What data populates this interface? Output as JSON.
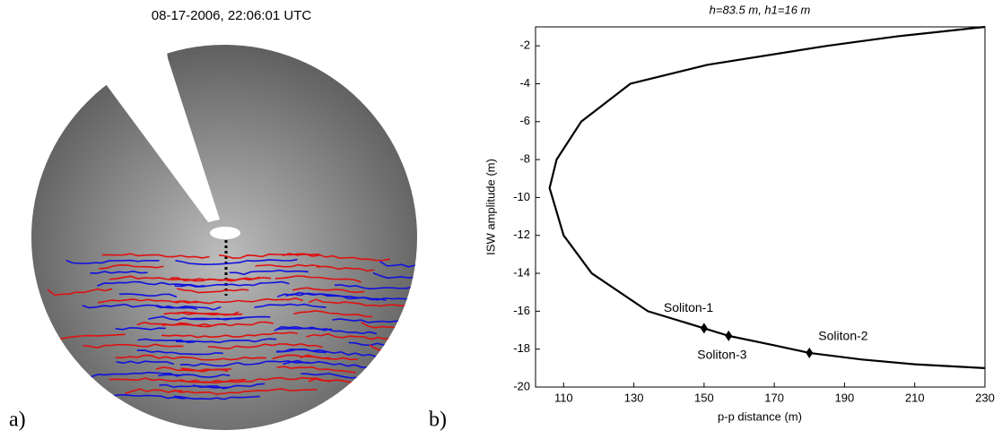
{
  "chart_data": [
    {
      "type": "image",
      "title": "08-17-2006, 22:06:01 UTC",
      "panel_label": "a)"
    },
    {
      "type": "line",
      "title": "h=83.5 m, h1=16 m",
      "panel_label": "b)",
      "xlabel": "p-p distance (m)",
      "ylabel": "ISW amplitude (m)",
      "xlim": [
        102,
        230
      ],
      "xticks": [
        110,
        130,
        150,
        170,
        190,
        210,
        230
      ],
      "ylim": [
        -20,
        -1
      ],
      "yticks": [
        -20,
        -18,
        -16,
        -14,
        -12,
        -10,
        -8,
        -6,
        -4,
        -2
      ],
      "series": [
        {
          "color": "#000000",
          "x": [
            230,
            205,
            185,
            151,
            129,
            115,
            108,
            106,
            110,
            118,
            134,
            150,
            157,
            170,
            180,
            195,
            210,
            230
          ],
          "y": [
            -1,
            -1.5,
            -2,
            -3,
            -4,
            -6,
            -8,
            -9.5,
            -12,
            -14,
            -16,
            -16.9,
            -17.3,
            -17.8,
            -18.2,
            -18.55,
            -18.8,
            -19
          ]
        }
      ],
      "points": {
        "x": [
          150,
          157,
          180
        ],
        "y": [
          -16.9,
          -17.3,
          -18.2
        ],
        "labels": [
          "Soliton-1",
          "Soliton-3",
          "Soliton-2"
        ],
        "color": "#000000"
      }
    }
  ]
}
